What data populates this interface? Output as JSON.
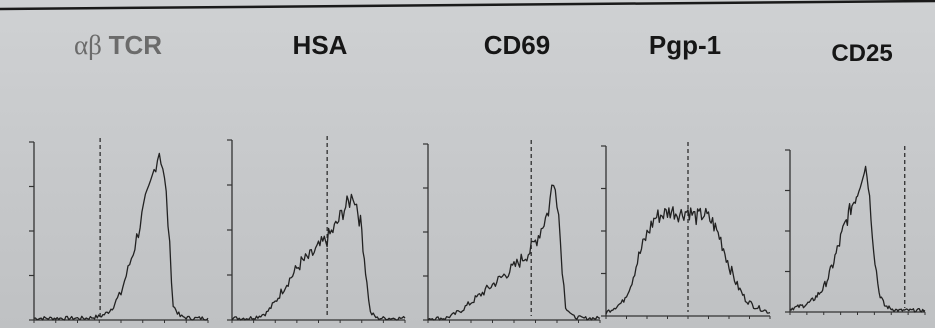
{
  "figure": {
    "colors": {
      "background": "#c8cacc",
      "trace": "#222222",
      "axis": "#333333",
      "marker": "#222222"
    }
  },
  "chart_data": [
    {
      "type": "line",
      "title_greek": "αβ",
      "title": "TCR",
      "xlim": [
        0,
        100
      ],
      "ylim": [
        0,
        100
      ],
      "marker_x": 38,
      "x": [
        0,
        10,
        20,
        30,
        38,
        42,
        45,
        48,
        50,
        52,
        54,
        56,
        58,
        60,
        62,
        64,
        66,
        68,
        70,
        72,
        74,
        76,
        78,
        80,
        84,
        90,
        100
      ],
      "y": [
        1,
        1,
        1,
        1,
        2,
        4,
        7,
        12,
        15,
        22,
        28,
        35,
        42,
        50,
        58,
        66,
        72,
        80,
        88,
        95,
        86,
        70,
        40,
        8,
        2,
        1,
        1
      ]
    },
    {
      "type": "line",
      "title": "HSA",
      "xlim": [
        0,
        100
      ],
      "ylim": [
        0,
        100
      ],
      "marker_x": 55,
      "x": [
        0,
        10,
        15,
        20,
        25,
        30,
        35,
        40,
        45,
        50,
        55,
        60,
        65,
        68,
        70,
        72,
        75,
        78,
        80,
        84,
        90,
        100
      ],
      "y": [
        1,
        1,
        2,
        4,
        10,
        18,
        25,
        32,
        35,
        40,
        45,
        52,
        62,
        66,
        70,
        64,
        50,
        20,
        4,
        1,
        1,
        1
      ],
      "noisy": true
    },
    {
      "type": "line",
      "title": "CD69",
      "xlim": [
        0,
        100
      ],
      "ylim": [
        0,
        100
      ],
      "marker_x": 60,
      "x": [
        0,
        10,
        15,
        20,
        25,
        30,
        35,
        40,
        45,
        50,
        55,
        60,
        65,
        70,
        72,
        74,
        76,
        78,
        80,
        84,
        90,
        100
      ],
      "y": [
        1,
        1,
        3,
        6,
        10,
        14,
        18,
        22,
        26,
        30,
        35,
        40,
        50,
        62,
        75,
        78,
        60,
        30,
        8,
        2,
        1,
        1
      ],
      "noisy": true
    },
    {
      "type": "line",
      "title": "Pgp-1",
      "xlim": [
        0,
        100
      ],
      "ylim": [
        0,
        100
      ],
      "marker_x": 50,
      "x": [
        0,
        10,
        15,
        20,
        25,
        30,
        35,
        40,
        45,
        50,
        55,
        60,
        65,
        70,
        75,
        80,
        85,
        90,
        95,
        100
      ],
      "y": [
        2,
        8,
        18,
        35,
        48,
        58,
        60,
        62,
        60,
        62,
        58,
        60,
        55,
        45,
        30,
        18,
        10,
        6,
        4,
        2
      ],
      "noisy": true
    },
    {
      "type": "line",
      "title": "CD25",
      "xlim": [
        0,
        100
      ],
      "ylim": [
        0,
        100
      ],
      "marker_x": 85,
      "x": [
        0,
        10,
        15,
        20,
        25,
        30,
        35,
        40,
        45,
        50,
        52,
        54,
        56,
        58,
        60,
        62,
        64,
        66,
        70,
        75,
        80,
        88,
        100
      ],
      "y": [
        2,
        4,
        6,
        10,
        15,
        25,
        38,
        52,
        64,
        74,
        80,
        86,
        90,
        80,
        60,
        40,
        25,
        12,
        4,
        2,
        1,
        1,
        1
      ],
      "noisy": true
    }
  ]
}
